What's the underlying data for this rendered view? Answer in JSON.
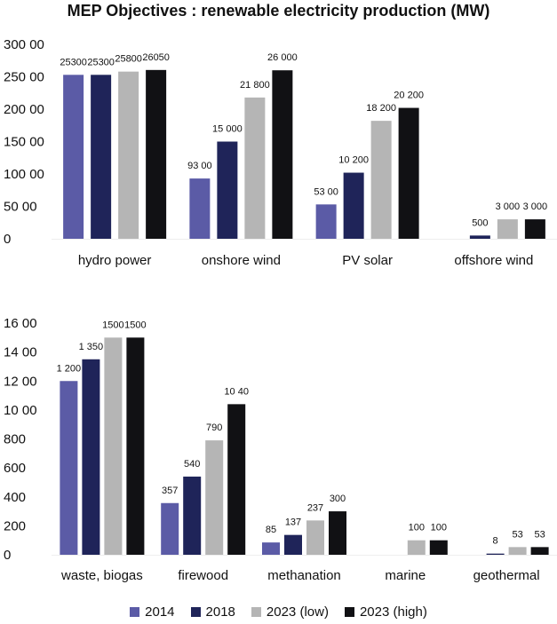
{
  "title": "MEP Objectives : renewable electricity production (MW)",
  "legend": [
    {
      "label": "2014",
      "color": "#5b5ba6"
    },
    {
      "label": "2018",
      "color": "#1f2459"
    },
    {
      "label": "2023 (low)",
      "color": "#b5b5b5"
    },
    {
      "label": "2023 (high)",
      "color": "#111114"
    }
  ],
  "chart_data": [
    {
      "type": "bar",
      "title": "MEP Objectives : renewable electricity production (MW)",
      "categories": [
        "hydro power",
        "onshore wind",
        "PV solar",
        "offshore wind"
      ],
      "ylim": [
        0,
        30000
      ],
      "ytick_values": [
        0,
        5000,
        10000,
        15000,
        20000,
        25000,
        30000
      ],
      "ytick_labels": [
        "0",
        "50 00",
        "100 00",
        "150 00",
        "200 00",
        "250 00",
        "300 00"
      ],
      "series": [
        {
          "name": "2014",
          "values": [
            25300,
            9300,
            5300,
            0
          ],
          "labels": [
            "25300",
            "93 00",
            "53 00",
            ""
          ]
        },
        {
          "name": "2018",
          "values": [
            25300,
            15000,
            10200,
            500
          ],
          "labels": [
            "25300",
            "15 000",
            "10 200",
            "500"
          ]
        },
        {
          "name": "2023 (low)",
          "values": [
            25800,
            21800,
            18200,
            3000
          ],
          "labels": [
            "25800",
            "21 800",
            "18 200",
            "3 000"
          ]
        },
        {
          "name": "2023 (high)",
          "values": [
            26050,
            26000,
            20200,
            3000
          ],
          "labels": [
            "26050",
            "26 000",
            "20 200",
            "3 000"
          ]
        }
      ]
    },
    {
      "type": "bar",
      "categories": [
        "waste, biogas",
        "firewood",
        "methanation",
        "marine",
        "geothermal"
      ],
      "ylim": [
        0,
        1600
      ],
      "ytick_values": [
        0,
        200,
        400,
        600,
        800,
        1000,
        1200,
        1400,
        1600
      ],
      "ytick_labels": [
        "0",
        "200",
        "400",
        "600",
        "800",
        "10 00",
        "12 00",
        "14 00",
        "16 00"
      ],
      "series": [
        {
          "name": "2014",
          "values": [
            1200,
            357,
            85,
            0,
            0
          ],
          "labels": [
            "1 200",
            "357",
            "85",
            "",
            ""
          ]
        },
        {
          "name": "2018",
          "values": [
            1350,
            540,
            137,
            0,
            8
          ],
          "labels": [
            "1 350",
            "540",
            "137",
            "",
            "8"
          ]
        },
        {
          "name": "2023 (low)",
          "values": [
            1500,
            790,
            237,
            100,
            53
          ],
          "labels": [
            "1500",
            "790",
            "237",
            "100",
            "53"
          ]
        },
        {
          "name": "2023 (high)",
          "values": [
            1500,
            1040,
            300,
            100,
            53
          ],
          "labels": [
            "1500",
            "10 40",
            "300",
            "100",
            "53"
          ]
        }
      ]
    }
  ]
}
